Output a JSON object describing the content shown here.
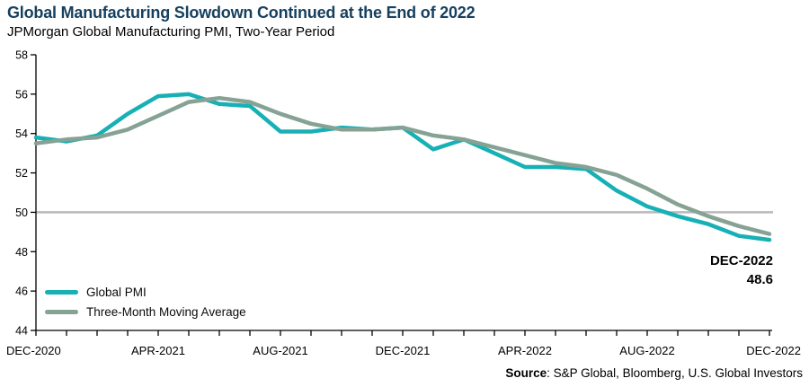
{
  "header": {
    "title": "Global Manufacturing Slowdown Continued at the End of 2022",
    "subtitle": "JPMorgan Global Manufacturing PMI, Two-Year Period"
  },
  "legend": {
    "items": [
      {
        "label": "Global PMI",
        "color": "#16b0b5"
      },
      {
        "label": "Three-Month Moving Average",
        "color": "#85a294"
      }
    ]
  },
  "annotation": {
    "line1": "DEC-2022",
    "line2": "48.6"
  },
  "source": {
    "label": "Source",
    "text": ": S&P Global, Bloomberg, U.S. Global Investors"
  },
  "colors": {
    "title": "#16405f",
    "global_pmi": "#16b0b5",
    "moving_average": "#85a294",
    "reference_line": "#b9b9b9",
    "axis": "#000000"
  },
  "chart_data": {
    "type": "line",
    "x": [
      "DEC-2020",
      "JAN-2021",
      "FEB-2021",
      "MAR-2021",
      "APR-2021",
      "MAY-2021",
      "JUN-2021",
      "JUL-2021",
      "AUG-2021",
      "SEP-2021",
      "OCT-2021",
      "NOV-2021",
      "DEC-2021",
      "JAN-2022",
      "FEB-2022",
      "MAR-2022",
      "APR-2022",
      "MAY-2022",
      "JUN-2022",
      "JUL-2022",
      "AUG-2022",
      "SEP-2022",
      "OCT-2022",
      "NOV-2022",
      "DEC-2022"
    ],
    "series": [
      {
        "name": "Global PMI",
        "color": "#16b0b5",
        "values": [
          53.8,
          53.6,
          53.9,
          55.0,
          55.9,
          56.0,
          55.5,
          55.4,
          54.1,
          54.1,
          54.3,
          54.2,
          54.3,
          53.2,
          53.7,
          53.0,
          52.3,
          52.3,
          52.2,
          51.1,
          50.3,
          49.8,
          49.4,
          48.8,
          48.6
        ]
      },
      {
        "name": "Three-Month Moving Average",
        "color": "#85a294",
        "values": [
          53.5,
          53.7,
          53.8,
          54.2,
          54.9,
          55.6,
          55.8,
          55.6,
          55.0,
          54.5,
          54.2,
          54.2,
          54.3,
          53.9,
          53.7,
          53.3,
          52.9,
          52.5,
          52.3,
          51.9,
          51.2,
          50.4,
          49.8,
          49.3,
          48.9
        ]
      }
    ],
    "title": "Global Manufacturing Slowdown Continued at the End of 2022",
    "xlabel": "",
    "ylabel": "",
    "ylim": [
      44,
      58
    ],
    "ytick_step": 2,
    "xtick_labels": [
      "DEC-2020",
      "APR-2021",
      "AUG-2021",
      "DEC-2021",
      "APR-2022",
      "AUG-2022",
      "DEC-2022"
    ],
    "xtick_every_n_months": 4,
    "reference_line": {
      "y": 50,
      "color": "#b9b9b9"
    },
    "grid": false,
    "legend_position": "inside-bottom-left",
    "end_label": {
      "x": "DEC-2022",
      "value": 48.6
    }
  }
}
